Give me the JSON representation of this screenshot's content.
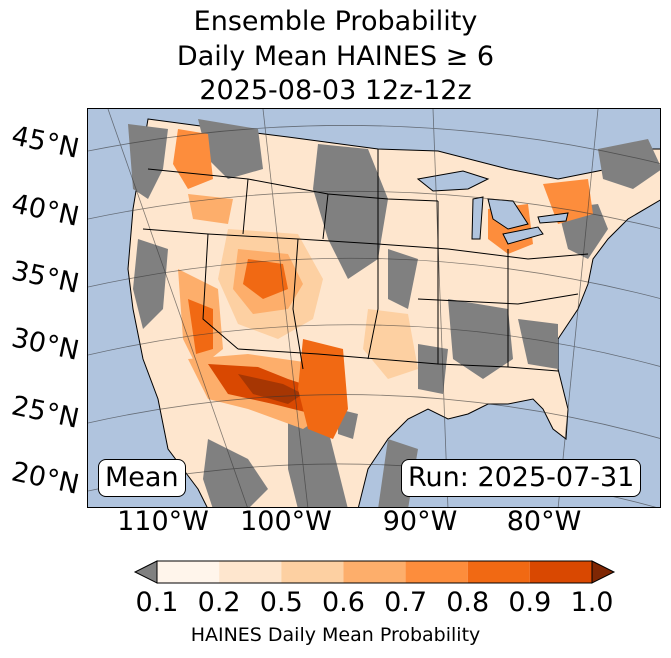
{
  "title": {
    "line1": "Ensemble Probability",
    "line2": "Daily Mean HAINES ≥ 6",
    "line3": "2025-08-03 12z-12z"
  },
  "lat_labels": [
    "45°N",
    "40°N",
    "35°N",
    "30°N",
    "25°N",
    "20°N"
  ],
  "lon_labels": [
    "110°W",
    "100°W",
    "90°W",
    "80°W"
  ],
  "badges": {
    "mean": "Mean",
    "run": "Run: 2025-07-31"
  },
  "colorbar": {
    "label": "HAINES Daily Mean Probability",
    "ticks": [
      "0.1",
      "0.2",
      "0.5",
      "0.6",
      "0.7",
      "0.8",
      "0.9",
      "1.0"
    ],
    "colors": [
      "#fff5eb",
      "#fee6ce",
      "#fdd0a2",
      "#fdae6b",
      "#fd8d3c",
      "#f16913",
      "#d94801",
      "#a63603"
    ],
    "under_color": "#808080",
    "over_color": "#7f2704"
  },
  "colors": {
    "ocean": "#b0c4de",
    "missing": "#808080",
    "land_low": "#fff5eb"
  }
}
